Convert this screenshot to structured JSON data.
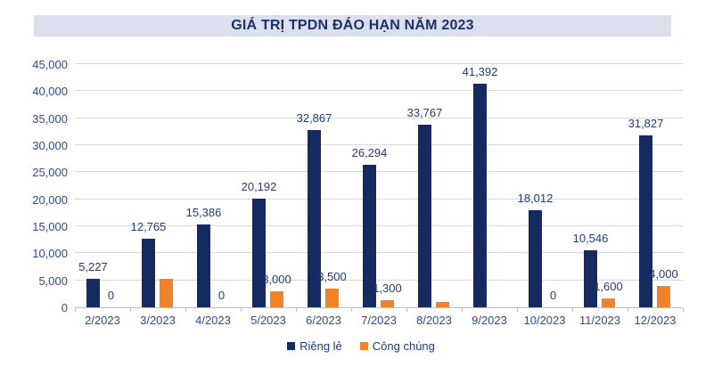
{
  "title": "GIÁ TRỊ TPDN ĐÁO HẠN NĂM 2023",
  "chart_data": {
    "type": "bar",
    "title": "GIÁ TRỊ TPDN ĐÁO HẠN NĂM 2023",
    "categories": [
      "2/2023",
      "3/2023",
      "4/2023",
      "5/2023",
      "6/2023",
      "7/2023",
      "8/2023",
      "9/2023",
      "10/2023",
      "11/2023",
      "12/2023"
    ],
    "series": [
      {
        "name": "Riêng lẻ",
        "color": "#152a60",
        "values": [
          5227,
          12765,
          15386,
          20192,
          32867,
          26294,
          33767,
          41392,
          18012,
          10546,
          31827
        ],
        "labels": [
          "5,227",
          "12,765",
          "15,386",
          "20,192",
          "32,867",
          "26,294",
          "33,767",
          "41,392",
          "18,012",
          "10,546",
          "31,827"
        ]
      },
      {
        "name": "Công chúng",
        "color": "#f0832a",
        "values": [
          0,
          5300,
          0,
          3000,
          3500,
          1300,
          1000,
          0,
          0,
          1600,
          4000
        ],
        "labels": [
          "0",
          "",
          "0",
          "3,000",
          "3,500",
          "1,300",
          "",
          "",
          "0",
          "1,600",
          "4,000"
        ]
      }
    ],
    "ylim": [
      0,
      45000
    ],
    "ytick_step": 5000,
    "ytick_labels": [
      "0",
      "5,000",
      "10,000",
      "15,000",
      "20,000",
      "25,000",
      "30,000",
      "35,000",
      "40,000",
      "45,000"
    ],
    "grid": true,
    "legend_position": "bottom"
  },
  "legend": {
    "items": [
      {
        "label": "Riêng lẻ",
        "color": "#152a60"
      },
      {
        "label": "Công chúng",
        "color": "#f0832a"
      }
    ]
  }
}
